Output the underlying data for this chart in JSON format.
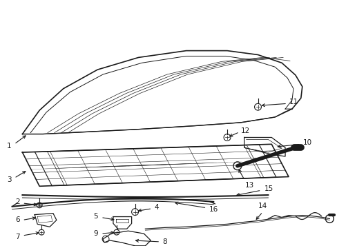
{
  "background_color": "#ffffff",
  "line_color": "#1a1a1a",
  "figsize": [
    4.89,
    3.6
  ],
  "dpi": 100,
  "font_size": 7.5
}
